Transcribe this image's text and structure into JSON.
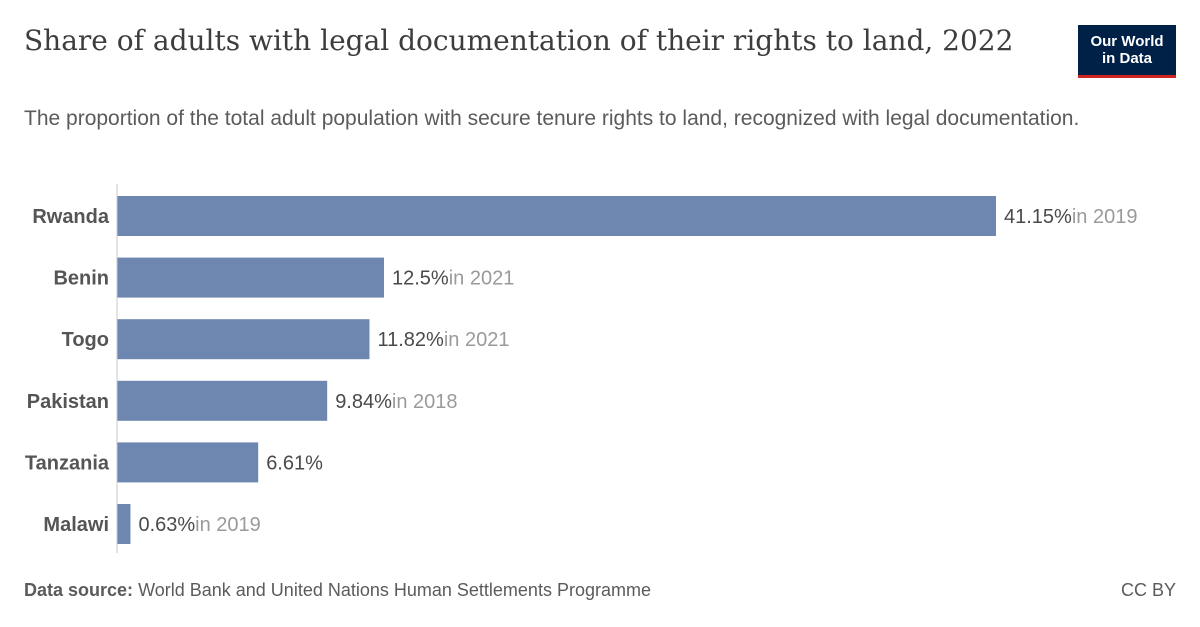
{
  "header": {
    "title": "Share of adults with legal documentation of their rights to land, 2022",
    "subtitle": "The proportion of the total adult population with secure tenure rights to land, recognized with legal documentation."
  },
  "logo": {
    "line1": "Our World",
    "line2": "in Data",
    "background": "#002147",
    "accent": "#ce261e"
  },
  "footer": {
    "source_label": "Data source:",
    "source_text": "World Bank and United Nations Human Settlements Programme",
    "license": "CC BY"
  },
  "chart_data": {
    "type": "bar",
    "orientation": "horizontal",
    "categories": [
      "Rwanda",
      "Benin",
      "Togo",
      "Pakistan",
      "Tanzania",
      "Malawi"
    ],
    "values": [
      41.15,
      12.5,
      11.82,
      9.84,
      6.61,
      0.63
    ],
    "value_labels": [
      "41.15%",
      "12.5%",
      "11.82%",
      "9.84%",
      "6.61%",
      "0.63%"
    ],
    "year_notes": [
      "in 2019",
      "in 2021",
      "in 2021",
      "in 2018",
      "",
      "in 2019"
    ],
    "xlim": [
      0,
      41.15
    ],
    "bar_color": "#6d87b0",
    "axis_color": "#c8c8c8",
    "grid": false,
    "legend": "none"
  }
}
